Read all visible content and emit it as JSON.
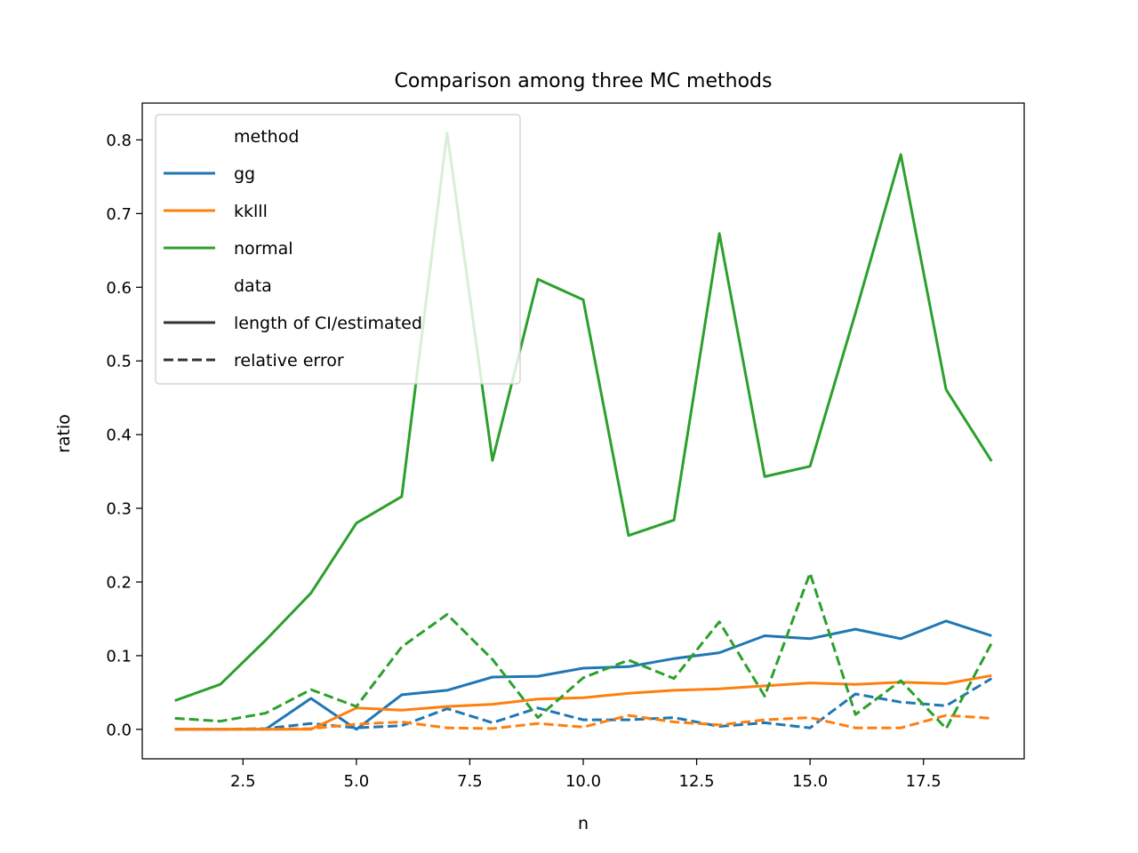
{
  "chart_data": {
    "type": "line",
    "title": "Comparison among three MC methods",
    "xlabel": "n",
    "ylabel": "ratio",
    "xlim": [
      0.28,
      19.72
    ],
    "ylim": [
      -0.04,
      0.85
    ],
    "xticks": [
      "2.5",
      "5.0",
      "7.5",
      "10.0",
      "12.5",
      "15.0",
      "17.5"
    ],
    "yticks": [
      "0.0",
      "0.1",
      "0.2",
      "0.3",
      "0.4",
      "0.5",
      "0.6",
      "0.7",
      "0.8"
    ],
    "grid": false,
    "legend": {
      "placement": "upper-left",
      "groups": [
        {
          "title": "method",
          "entries": [
            {
              "label": "gg",
              "color": "#1f77b4",
              "style": "solid"
            },
            {
              "label": "kklll",
              "color": "#ff7f0e",
              "style": "solid"
            },
            {
              "label": "normal",
              "color": "#2ca02c",
              "style": "solid"
            }
          ]
        },
        {
          "title": "data",
          "entries": [
            {
              "label": "length of CI/estimated",
              "color": "#333333",
              "style": "solid"
            },
            {
              "label": "relative error",
              "color": "#333333",
              "style": "dashed"
            }
          ]
        }
      ]
    },
    "x": [
      1,
      2,
      3,
      4,
      5,
      6,
      7,
      8,
      9,
      10,
      11,
      12,
      13,
      14,
      15,
      16,
      17,
      18,
      19
    ],
    "series": [
      {
        "method": "gg",
        "data": "length of CI/estimated",
        "color": "#1f77b4",
        "style": "solid",
        "values": [
          0.0,
          0.0,
          0.0,
          0.042,
          0.0,
          0.047,
          0.053,
          0.071,
          0.072,
          0.083,
          0.085,
          0.096,
          0.104,
          0.127,
          0.123,
          0.136,
          0.123,
          0.147,
          0.127
        ]
      },
      {
        "method": "gg",
        "data": "relative error",
        "color": "#1f77b4",
        "style": "dashed",
        "values": [
          0.0,
          0.0,
          0.001,
          0.008,
          0.002,
          0.005,
          0.028,
          0.009,
          0.029,
          0.013,
          0.013,
          0.016,
          0.004,
          0.009,
          0.002,
          0.048,
          0.037,
          0.032,
          0.069
        ]
      },
      {
        "method": "kklll",
        "data": "length of CI/estimated",
        "color": "#ff7f0e",
        "style": "solid",
        "values": [
          0.0,
          0.0,
          0.0,
          0.0,
          0.029,
          0.026,
          0.031,
          0.034,
          0.041,
          0.043,
          0.049,
          0.053,
          0.055,
          0.059,
          0.063,
          0.061,
          0.064,
          0.062,
          0.073
        ]
      },
      {
        "method": "kklll",
        "data": "relative error",
        "color": "#ff7f0e",
        "style": "dashed",
        "values": [
          0.0,
          0.0,
          0.0,
          0.001,
          0.007,
          0.01,
          0.002,
          0.001,
          0.008,
          0.003,
          0.019,
          0.01,
          0.006,
          0.013,
          0.016,
          0.002,
          0.002,
          0.019,
          0.015
        ]
      },
      {
        "method": "normal",
        "data": "length of CI/estimated",
        "color": "#2ca02c",
        "style": "solid",
        "values": [
          0.039,
          0.061,
          0.121,
          0.185,
          0.28,
          0.316,
          0.81,
          0.365,
          0.611,
          0.583,
          0.263,
          0.284,
          0.673,
          0.343,
          0.357,
          0.565,
          0.78,
          0.461,
          0.364
        ]
      },
      {
        "method": "normal",
        "data": "relative error",
        "color": "#2ca02c",
        "style": "dashed",
        "values": [
          0.015,
          0.011,
          0.022,
          0.054,
          0.031,
          0.112,
          0.156,
          0.095,
          0.016,
          0.07,
          0.094,
          0.069,
          0.146,
          0.045,
          0.212,
          0.02,
          0.066,
          0.001,
          0.117
        ]
      }
    ]
  }
}
